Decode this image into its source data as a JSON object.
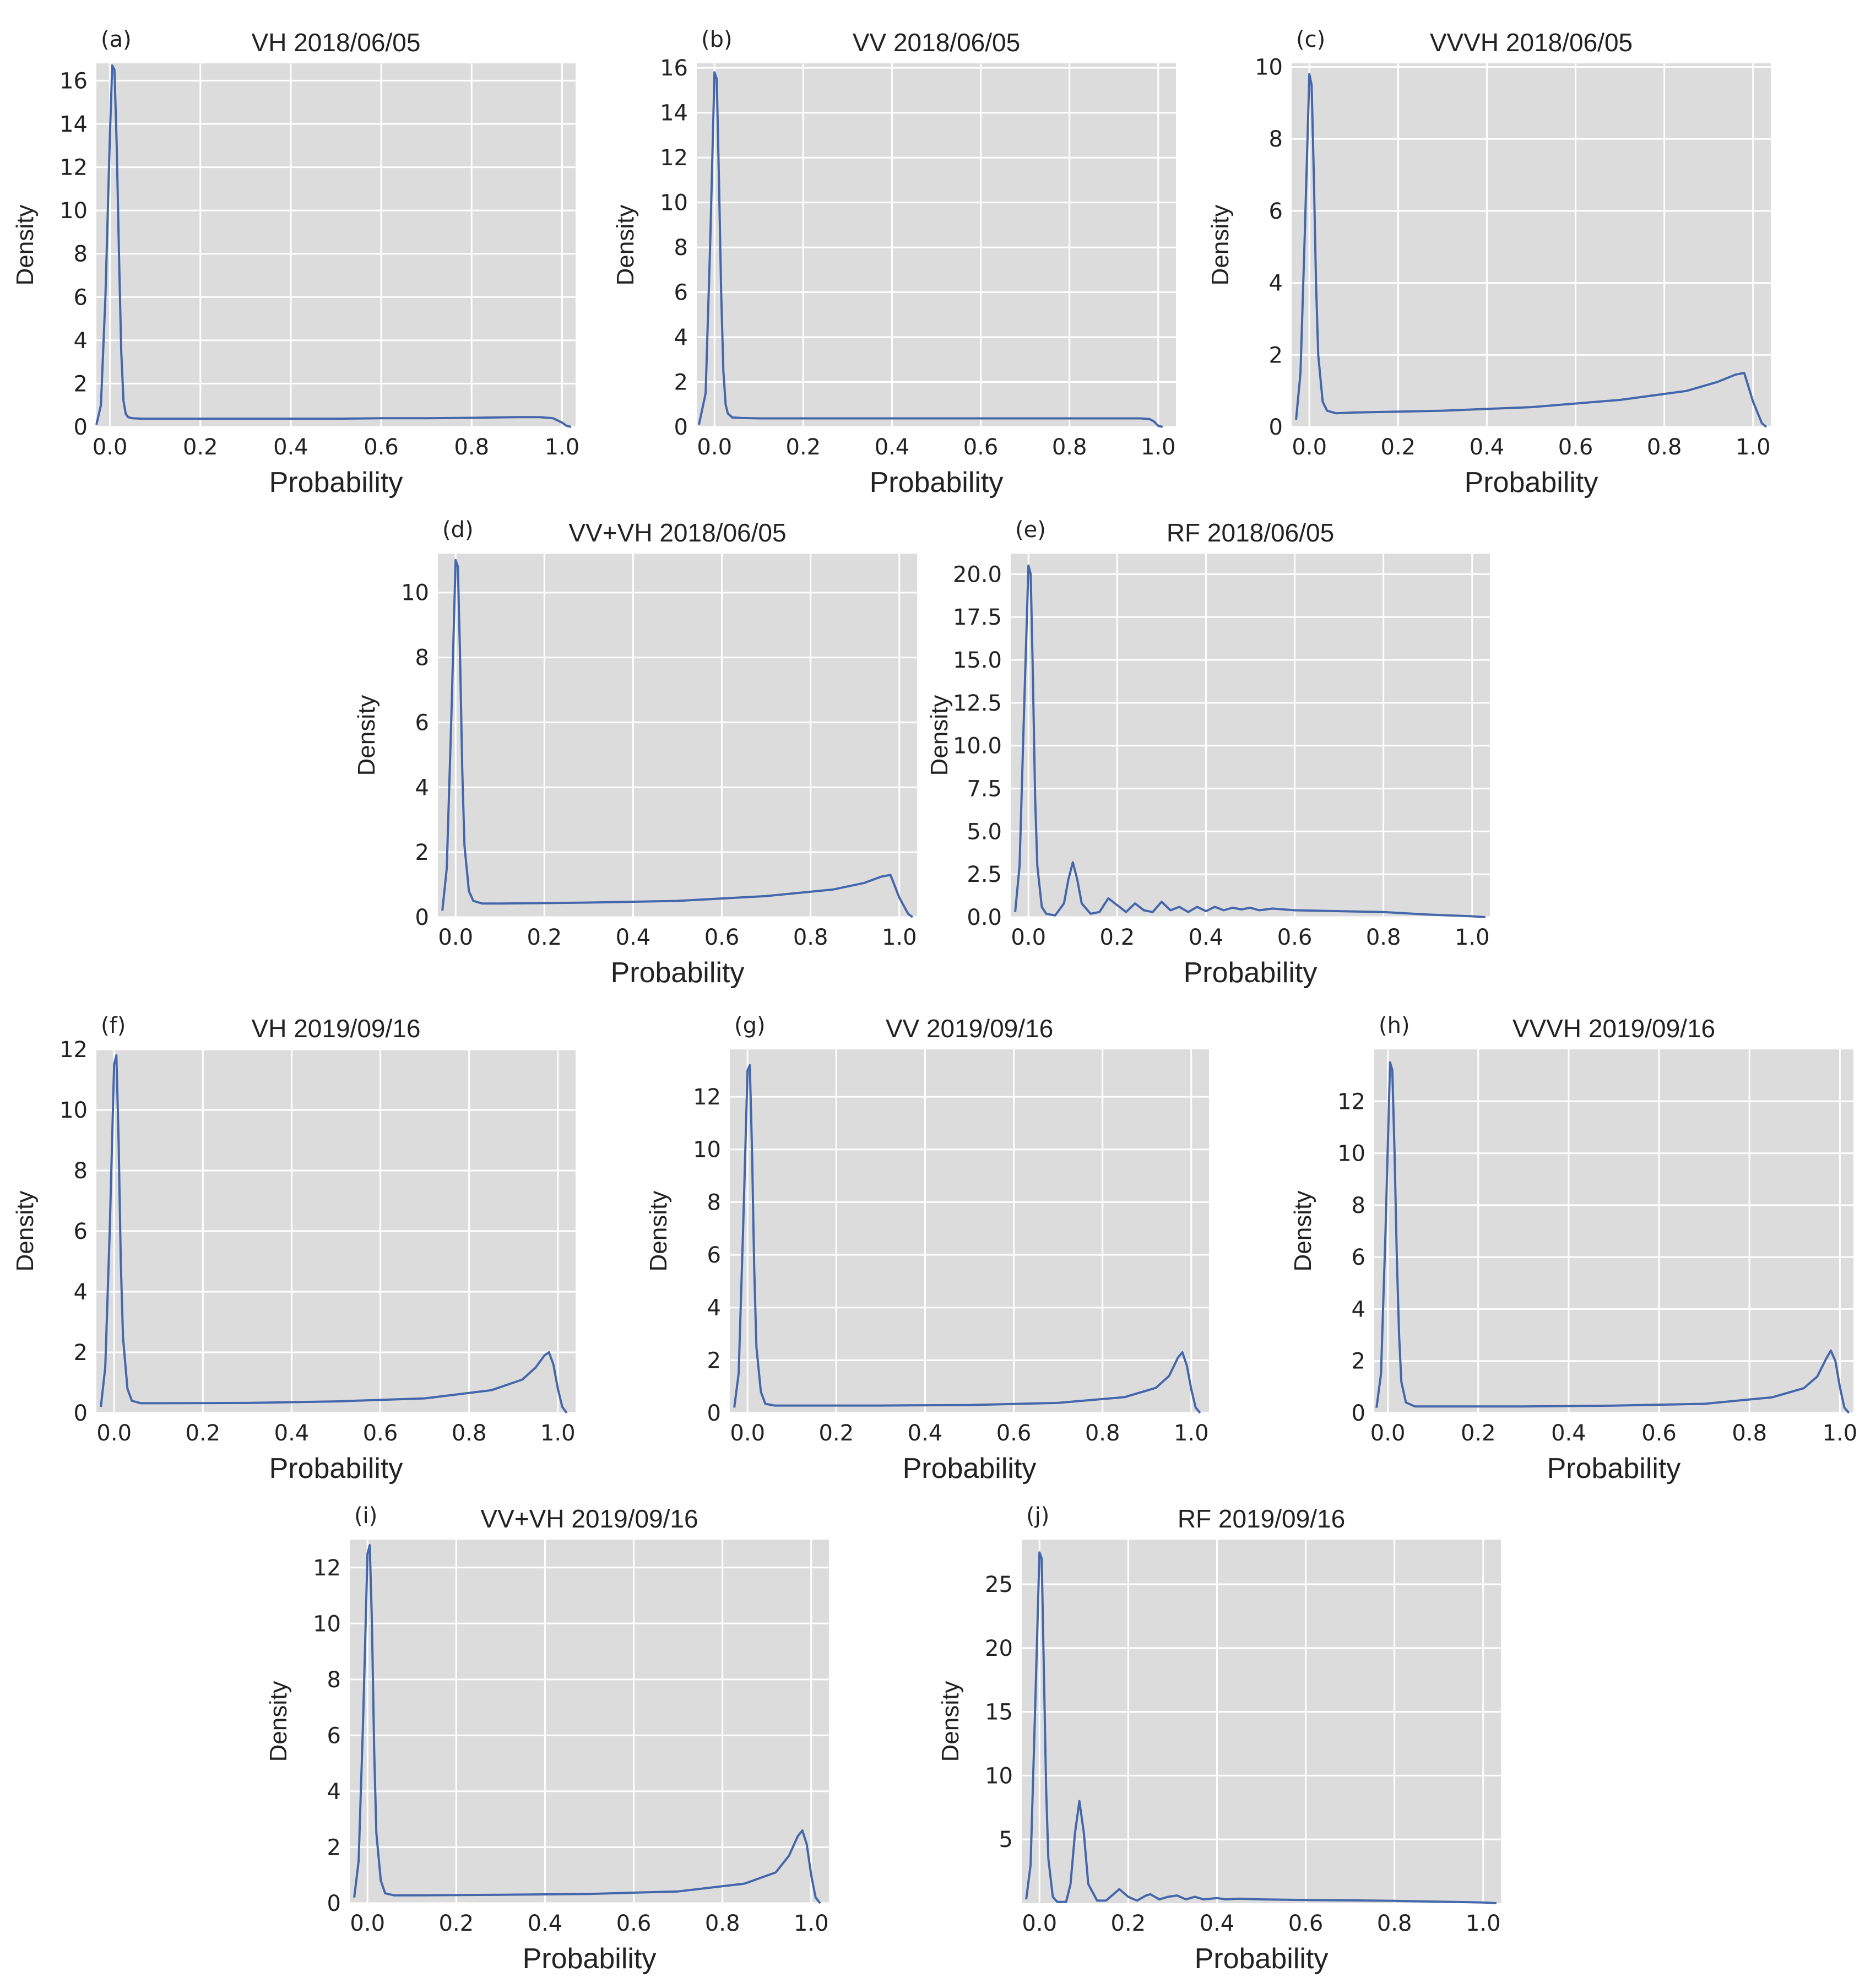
{
  "colors": {
    "background": "#dcdcdc",
    "grid": "#ffffff",
    "line": "#4466aa"
  },
  "chart_data": [
    {
      "panel": "(a)",
      "title": "VH 2018/06/05",
      "type": "line",
      "xlabel": "Probability",
      "ylabel": "Density",
      "xlim": [
        -0.03,
        1.03
      ],
      "ylim": [
        0,
        16.8
      ],
      "xticks": [
        0.0,
        0.2,
        0.4,
        0.6,
        0.8,
        1.0
      ],
      "xtick_labels": [
        "0.0",
        "0.2",
        "0.4",
        "0.6",
        "0.8",
        "1.0"
      ],
      "yticks": [
        0,
        2,
        4,
        6,
        8,
        10,
        12,
        14,
        16
      ],
      "ytick_labels": [
        "0",
        "2",
        "4",
        "6",
        "8",
        "10",
        "12",
        "14",
        "16"
      ],
      "grid": true,
      "series": [
        {
          "x": [
            -0.03,
            -0.02,
            -0.01,
            0.0,
            0.005,
            0.01,
            0.015,
            0.02,
            0.025,
            0.03,
            0.035,
            0.04,
            0.05,
            0.07,
            0.1,
            0.2,
            0.3,
            0.4,
            0.5,
            0.6,
            0.7,
            0.8,
            0.9,
            0.95,
            0.98,
            1.0,
            1.01,
            1.02
          ],
          "y": [
            0.1,
            1.0,
            6.0,
            13.5,
            16.7,
            16.5,
            13.0,
            8.0,
            3.5,
            1.2,
            0.6,
            0.45,
            0.4,
            0.38,
            0.38,
            0.38,
            0.38,
            0.38,
            0.38,
            0.4,
            0.4,
            0.42,
            0.45,
            0.45,
            0.4,
            0.2,
            0.05,
            0.0
          ]
        }
      ]
    },
    {
      "panel": "(b)",
      "title": "VV 2018/06/05",
      "type": "line",
      "xlabel": "Probability",
      "ylabel": "Density",
      "xlim": [
        -0.04,
        1.04
      ],
      "ylim": [
        0,
        16.2
      ],
      "xticks": [
        0.0,
        0.2,
        0.4,
        0.6,
        0.8,
        1.0
      ],
      "xtick_labels": [
        "0.0",
        "0.2",
        "0.4",
        "0.6",
        "0.8",
        "1.0"
      ],
      "yticks": [
        0,
        2,
        4,
        6,
        8,
        10,
        12,
        14,
        16
      ],
      "ytick_labels": [
        "0",
        "2",
        "4",
        "6",
        "8",
        "10",
        "12",
        "14",
        "16"
      ],
      "grid": true,
      "series": [
        {
          "x": [
            -0.035,
            -0.02,
            -0.01,
            0.0,
            0.005,
            0.01,
            0.015,
            0.02,
            0.025,
            0.03,
            0.04,
            0.06,
            0.1,
            0.3,
            0.5,
            0.7,
            0.9,
            0.96,
            0.98,
            0.99,
            1.0,
            1.01
          ],
          "y": [
            0.1,
            1.5,
            8.0,
            15.8,
            15.5,
            11.0,
            6.0,
            2.5,
            1.0,
            0.6,
            0.42,
            0.4,
            0.38,
            0.38,
            0.38,
            0.38,
            0.38,
            0.38,
            0.35,
            0.25,
            0.05,
            0.0
          ]
        }
      ]
    },
    {
      "panel": "(c)",
      "title": "VVVH 2018/06/05",
      "type": "line",
      "xlabel": "Probability",
      "ylabel": "Density",
      "xlim": [
        -0.04,
        1.04
      ],
      "ylim": [
        0,
        10.1
      ],
      "xticks": [
        0.0,
        0.2,
        0.4,
        0.6,
        0.8,
        1.0
      ],
      "xtick_labels": [
        "0.0",
        "0.2",
        "0.4",
        "0.6",
        "0.8",
        "1.0"
      ],
      "yticks": [
        0,
        2,
        4,
        6,
        8,
        10
      ],
      "ytick_labels": [
        "0",
        "2",
        "4",
        "6",
        "8",
        "10"
      ],
      "grid": true,
      "series": [
        {
          "x": [
            -0.03,
            -0.02,
            -0.01,
            0.0,
            0.005,
            0.01,
            0.015,
            0.02,
            0.03,
            0.04,
            0.06,
            0.1,
            0.3,
            0.5,
            0.7,
            0.85,
            0.92,
            0.96,
            0.98,
            1.0,
            1.02,
            1.03
          ],
          "y": [
            0.2,
            1.5,
            5.5,
            9.8,
            9.5,
            7.0,
            4.0,
            2.0,
            0.7,
            0.45,
            0.38,
            0.4,
            0.45,
            0.55,
            0.75,
            1.0,
            1.25,
            1.45,
            1.5,
            0.7,
            0.1,
            0.0
          ]
        }
      ]
    },
    {
      "panel": "(d)",
      "title": "VV+VH 2018/06/05",
      "type": "line",
      "xlabel": "Probability",
      "ylabel": "Density",
      "xlim": [
        -0.04,
        1.04
      ],
      "ylim": [
        0,
        11.2
      ],
      "xticks": [
        0.0,
        0.2,
        0.4,
        0.6,
        0.8,
        1.0
      ],
      "xtick_labels": [
        "0.0",
        "0.2",
        "0.4",
        "0.6",
        "0.8",
        "1.0"
      ],
      "yticks": [
        0,
        2,
        4,
        6,
        8,
        10
      ],
      "ytick_labels": [
        "0",
        "2",
        "4",
        "6",
        "8",
        "10"
      ],
      "grid": true,
      "series": [
        {
          "x": [
            -0.03,
            -0.02,
            -0.01,
            0.0,
            0.005,
            0.01,
            0.015,
            0.02,
            0.03,
            0.04,
            0.06,
            0.1,
            0.3,
            0.5,
            0.7,
            0.85,
            0.92,
            0.96,
            0.98,
            1.0,
            1.02,
            1.03
          ],
          "y": [
            0.2,
            1.5,
            6.0,
            11.0,
            10.8,
            8.0,
            4.5,
            2.2,
            0.8,
            0.5,
            0.42,
            0.42,
            0.45,
            0.5,
            0.65,
            0.85,
            1.05,
            1.25,
            1.3,
            0.6,
            0.1,
            0.0
          ]
        }
      ]
    },
    {
      "panel": "(e)",
      "title": "RF 2018/06/05",
      "type": "line",
      "xlabel": "Probability",
      "ylabel": "Density",
      "xlim": [
        -0.04,
        1.04
      ],
      "ylim": [
        0,
        21.2
      ],
      "xticks": [
        0.0,
        0.2,
        0.4,
        0.6,
        0.8,
        1.0
      ],
      "xtick_labels": [
        "0.0",
        "0.2",
        "0.4",
        "0.6",
        "0.8",
        "1.0"
      ],
      "yticks": [
        0,
        2.5,
        5,
        7.5,
        10,
        12.5,
        15,
        17.5,
        20
      ],
      "ytick_labels": [
        "0.0",
        "2.5",
        "5.0",
        "7.5",
        "10.0",
        "12.5",
        "15.0",
        "17.5",
        "20.0"
      ],
      "grid": true,
      "series": [
        {
          "x": [
            -0.03,
            -0.02,
            -0.01,
            0.0,
            0.005,
            0.01,
            0.015,
            0.02,
            0.03,
            0.04,
            0.06,
            0.08,
            0.09,
            0.1,
            0.11,
            0.12,
            0.14,
            0.16,
            0.18,
            0.2,
            0.22,
            0.24,
            0.26,
            0.28,
            0.3,
            0.32,
            0.34,
            0.36,
            0.38,
            0.4,
            0.42,
            0.44,
            0.46,
            0.48,
            0.5,
            0.52,
            0.55,
            0.6,
            0.7,
            0.8,
            0.9,
            1.0,
            1.03
          ],
          "y": [
            0.3,
            3.0,
            12.0,
            20.5,
            20.0,
            14.0,
            7.0,
            3.0,
            0.6,
            0.2,
            0.1,
            0.8,
            2.2,
            3.2,
            2.2,
            0.8,
            0.2,
            0.3,
            1.1,
            0.7,
            0.3,
            0.8,
            0.4,
            0.3,
            0.9,
            0.4,
            0.6,
            0.3,
            0.6,
            0.35,
            0.6,
            0.4,
            0.55,
            0.45,
            0.55,
            0.4,
            0.5,
            0.4,
            0.35,
            0.3,
            0.15,
            0.05,
            0.0
          ]
        }
      ]
    },
    {
      "panel": "(f)",
      "title": "VH 2019/09/16",
      "type": "line",
      "xlabel": "Probability",
      "ylabel": "Density",
      "xlim": [
        -0.04,
        1.04
      ],
      "ylim": [
        0,
        12.0
      ],
      "xticks": [
        0.0,
        0.2,
        0.4,
        0.6,
        0.8,
        1.0
      ],
      "xtick_labels": [
        "0.0",
        "0.2",
        "0.4",
        "0.6",
        "0.8",
        "1.0"
      ],
      "yticks": [
        0,
        2,
        4,
        6,
        8,
        10,
        12
      ],
      "ytick_labels": [
        "0",
        "2",
        "4",
        "6",
        "8",
        "10",
        "12"
      ],
      "grid": true,
      "series": [
        {
          "x": [
            -0.03,
            -0.02,
            -0.01,
            0.0,
            0.005,
            0.01,
            0.015,
            0.02,
            0.03,
            0.04,
            0.06,
            0.1,
            0.3,
            0.5,
            0.7,
            0.85,
            0.92,
            0.95,
            0.97,
            0.98,
            0.99,
            1.0,
            1.01,
            1.02
          ],
          "y": [
            0.2,
            1.5,
            6.0,
            11.5,
            11.8,
            9.0,
            5.0,
            2.5,
            0.8,
            0.4,
            0.32,
            0.32,
            0.33,
            0.38,
            0.48,
            0.75,
            1.1,
            1.5,
            1.9,
            2.0,
            1.6,
            0.8,
            0.2,
            0.0
          ]
        }
      ]
    },
    {
      "panel": "(g)",
      "title": "VV 2019/09/16",
      "type": "line",
      "xlabel": "Probability",
      "ylabel": "Density",
      "xlim": [
        -0.04,
        1.04
      ],
      "ylim": [
        0,
        13.8
      ],
      "xticks": [
        0.0,
        0.2,
        0.4,
        0.6,
        0.8,
        1.0
      ],
      "xtick_labels": [
        "0.0",
        "0.2",
        "0.4",
        "0.6",
        "0.8",
        "1.0"
      ],
      "yticks": [
        0,
        2,
        4,
        6,
        8,
        10,
        12
      ],
      "ytick_labels": [
        "0",
        "2",
        "4",
        "6",
        "8",
        "10",
        "12"
      ],
      "grid": true,
      "series": [
        {
          "x": [
            -0.03,
            -0.02,
            -0.01,
            0.0,
            0.005,
            0.01,
            0.015,
            0.02,
            0.03,
            0.04,
            0.06,
            0.1,
            0.3,
            0.5,
            0.7,
            0.85,
            0.92,
            0.95,
            0.97,
            0.98,
            0.99,
            1.0,
            1.01,
            1.02
          ],
          "y": [
            0.2,
            1.5,
            7.0,
            13.0,
            13.2,
            10.0,
            5.5,
            2.5,
            0.8,
            0.35,
            0.28,
            0.28,
            0.28,
            0.3,
            0.38,
            0.6,
            0.95,
            1.4,
            2.1,
            2.3,
            1.8,
            0.9,
            0.2,
            0.0
          ]
        }
      ]
    },
    {
      "panel": "(h)",
      "title": "VVVH 2019/09/16",
      "type": "line",
      "xlabel": "Probability",
      "ylabel": "Density",
      "xlim": [
        -0.03,
        1.03
      ],
      "ylim": [
        0,
        14.0
      ],
      "xticks": [
        0.0,
        0.2,
        0.4,
        0.6,
        0.8,
        1.0
      ],
      "xtick_labels": [
        "0.0",
        "0.2",
        "0.4",
        "0.6",
        "0.8",
        "1.0"
      ],
      "yticks": [
        0,
        2,
        4,
        6,
        8,
        10,
        12
      ],
      "ytick_labels": [
        "0",
        "2",
        "4",
        "6",
        "8",
        "10",
        "12"
      ],
      "grid": true,
      "series": [
        {
          "x": [
            -0.025,
            -0.015,
            -0.005,
            0.005,
            0.01,
            0.015,
            0.02,
            0.025,
            0.03,
            0.04,
            0.06,
            0.1,
            0.3,
            0.5,
            0.7,
            0.85,
            0.92,
            0.95,
            0.97,
            0.98,
            0.99,
            1.0,
            1.01,
            1.02
          ],
          "y": [
            0.2,
            1.5,
            7.0,
            13.5,
            13.2,
            10.0,
            6.0,
            3.0,
            1.2,
            0.4,
            0.25,
            0.25,
            0.25,
            0.28,
            0.35,
            0.6,
            0.95,
            1.4,
            2.1,
            2.4,
            2.0,
            1.0,
            0.2,
            0.0
          ]
        }
      ]
    },
    {
      "panel": "(i)",
      "title": "VV+VH 2019/09/16",
      "type": "line",
      "xlabel": "Probability",
      "ylabel": "Density",
      "xlim": [
        -0.04,
        1.04
      ],
      "ylim": [
        0,
        13.0
      ],
      "xticks": [
        0.0,
        0.2,
        0.4,
        0.6,
        0.8,
        1.0
      ],
      "xtick_labels": [
        "0.0",
        "0.2",
        "0.4",
        "0.6",
        "0.8",
        "1.0"
      ],
      "yticks": [
        0,
        2,
        4,
        6,
        8,
        10,
        12
      ],
      "ytick_labels": [
        "0",
        "2",
        "4",
        "6",
        "8",
        "10",
        "12"
      ],
      "grid": true,
      "series": [
        {
          "x": [
            -0.03,
            -0.02,
            -0.01,
            0.0,
            0.005,
            0.01,
            0.015,
            0.02,
            0.03,
            0.04,
            0.06,
            0.1,
            0.3,
            0.5,
            0.7,
            0.85,
            0.92,
            0.95,
            0.97,
            0.98,
            0.99,
            1.0,
            1.01,
            1.02
          ],
          "y": [
            0.2,
            1.5,
            6.5,
            12.5,
            12.8,
            10.0,
            5.5,
            2.5,
            0.8,
            0.35,
            0.28,
            0.28,
            0.3,
            0.33,
            0.42,
            0.7,
            1.1,
            1.7,
            2.4,
            2.6,
            2.1,
            1.0,
            0.2,
            0.0
          ]
        }
      ]
    },
    {
      "panel": "(j)",
      "title": "RF 2019/09/16",
      "type": "line",
      "xlabel": "Probability",
      "ylabel": "Density",
      "xlim": [
        -0.04,
        1.04
      ],
      "ylim": [
        0,
        28.5
      ],
      "xticks": [
        0.0,
        0.2,
        0.4,
        0.6,
        0.8,
        1.0
      ],
      "xtick_labels": [
        "0.0",
        "0.2",
        "0.4",
        "0.6",
        "0.8",
        "1.0"
      ],
      "yticks": [
        5,
        10,
        15,
        20,
        25
      ],
      "ytick_labels": [
        "5",
        "10",
        "15",
        "20",
        "25"
      ],
      "grid": true,
      "series": [
        {
          "x": [
            -0.03,
            -0.02,
            -0.01,
            0.0,
            0.005,
            0.01,
            0.015,
            0.02,
            0.03,
            0.04,
            0.06,
            0.07,
            0.08,
            0.09,
            0.1,
            0.11,
            0.13,
            0.15,
            0.17,
            0.18,
            0.2,
            0.22,
            0.24,
            0.25,
            0.27,
            0.29,
            0.31,
            0.33,
            0.35,
            0.37,
            0.4,
            0.42,
            0.45,
            0.5,
            0.6,
            0.7,
            0.8,
            0.9,
            1.0,
            1.03
          ],
          "y": [
            0.3,
            3.0,
            15.0,
            27.5,
            27.0,
            18.0,
            9.0,
            3.5,
            0.5,
            0.1,
            0.1,
            1.5,
            5.5,
            8.0,
            5.5,
            1.5,
            0.2,
            0.2,
            0.8,
            1.1,
            0.5,
            0.2,
            0.6,
            0.7,
            0.3,
            0.5,
            0.6,
            0.3,
            0.5,
            0.3,
            0.4,
            0.3,
            0.35,
            0.3,
            0.25,
            0.22,
            0.18,
            0.12,
            0.05,
            0.0
          ]
        }
      ]
    }
  ]
}
